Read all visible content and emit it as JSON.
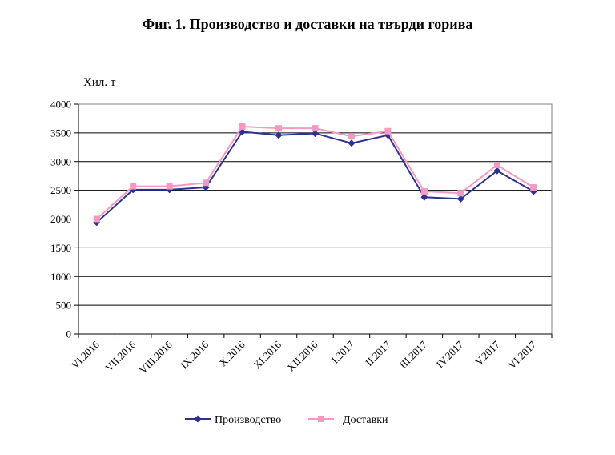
{
  "chart_data": {
    "type": "line",
    "title": "Фиг. 1. Производство и доставки на твърди горива",
    "ylabel": "Хил. т",
    "xlabel": "",
    "ylim": [
      0,
      4000
    ],
    "yticks": [
      0,
      500,
      1000,
      1500,
      2000,
      2500,
      3000,
      3500,
      4000
    ],
    "grid": "horizontal",
    "legend": "bottom",
    "categories": [
      "VI.2016",
      "VII.2016",
      "VIII.2016",
      "IX.2016",
      "X.2016",
      "XI.2016",
      "XII.2016",
      "I.2017",
      "II.2017",
      "III.2017",
      "IV.2017",
      "V.2017",
      "VI.2017"
    ],
    "series": [
      {
        "name": "Производство",
        "color": "#2e3192",
        "marker": "diamond",
        "values": [
          1940,
          2510,
          2510,
          2550,
          3520,
          3460,
          3490,
          3320,
          3460,
          2380,
          2350,
          2840,
          2480
        ]
      },
      {
        "name": "Доставки",
        "color": "#f49ac1",
        "marker": "square",
        "values": [
          2000,
          2570,
          2570,
          2630,
          3610,
          3580,
          3580,
          3440,
          3530,
          2480,
          2450,
          2940,
          2550
        ]
      }
    ]
  }
}
